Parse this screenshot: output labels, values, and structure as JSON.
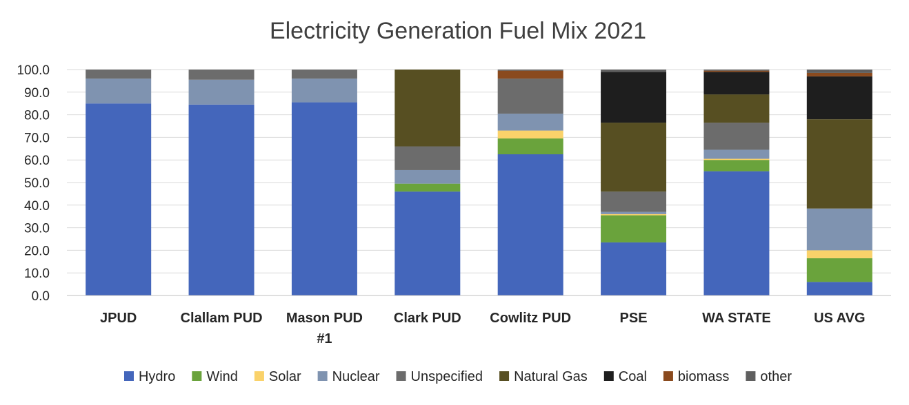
{
  "chart_data": {
    "type": "bar",
    "stacked": true,
    "title": "Electricity Generation Fuel Mix 2021",
    "xlabel": "",
    "ylabel": "",
    "ylim": [
      0,
      100
    ],
    "yticks": [
      "0.0",
      "10.0",
      "20.0",
      "30.0",
      "40.0",
      "50.0",
      "60.0",
      "70.0",
      "80.0",
      "90.0",
      "100.0"
    ],
    "grid": true,
    "legend_position": "bottom",
    "categories": [
      [
        "JPUD"
      ],
      [
        "Clallam PUD"
      ],
      [
        "Mason PUD",
        "#1"
      ],
      [
        "Clark PUD"
      ],
      [
        "Cowlitz PUD"
      ],
      [
        "PSE"
      ],
      [
        "WA STATE"
      ],
      [
        "US AVG"
      ]
    ],
    "series": [
      {
        "name": "Hydro",
        "color": "#4466bb",
        "values": [
          85.0,
          84.5,
          85.5,
          46.0,
          62.5,
          23.5,
          55.0,
          6.0
        ]
      },
      {
        "name": "Wind",
        "color": "#6aa33c",
        "values": [
          0.0,
          0.0,
          0.0,
          3.5,
          7.0,
          12.0,
          5.0,
          10.5
        ]
      },
      {
        "name": "Solar",
        "color": "#fad26a",
        "values": [
          0.0,
          0.0,
          0.0,
          0.0,
          3.5,
          0.5,
          0.5,
          3.5
        ]
      },
      {
        "name": "Nuclear",
        "color": "#7f93b0",
        "values": [
          11.0,
          11.0,
          10.5,
          6.0,
          7.5,
          1.0,
          4.0,
          18.5
        ]
      },
      {
        "name": "Unspecified",
        "color": "#6c6c6c",
        "values": [
          4.0,
          4.5,
          4.0,
          10.5,
          15.5,
          9.0,
          12.0,
          0.0
        ]
      },
      {
        "name": "Natural Gas",
        "color": "#574f22",
        "values": [
          0.0,
          0.0,
          0.0,
          34.0,
          0.0,
          30.5,
          12.5,
          39.5
        ]
      },
      {
        "name": "Coal",
        "color": "#1e1e1e",
        "values": [
          0.0,
          0.0,
          0.0,
          0.0,
          0.0,
          22.5,
          10.0,
          19.0
        ]
      },
      {
        "name": "biomass",
        "color": "#8a4a1e",
        "values": [
          0.0,
          0.0,
          0.0,
          0.0,
          3.5,
          0.0,
          0.5,
          1.5
        ]
      },
      {
        "name": "other",
        "color": "#5f5f5f",
        "values": [
          0.0,
          0.0,
          0.0,
          0.0,
          0.5,
          1.0,
          0.5,
          1.5
        ]
      }
    ]
  }
}
